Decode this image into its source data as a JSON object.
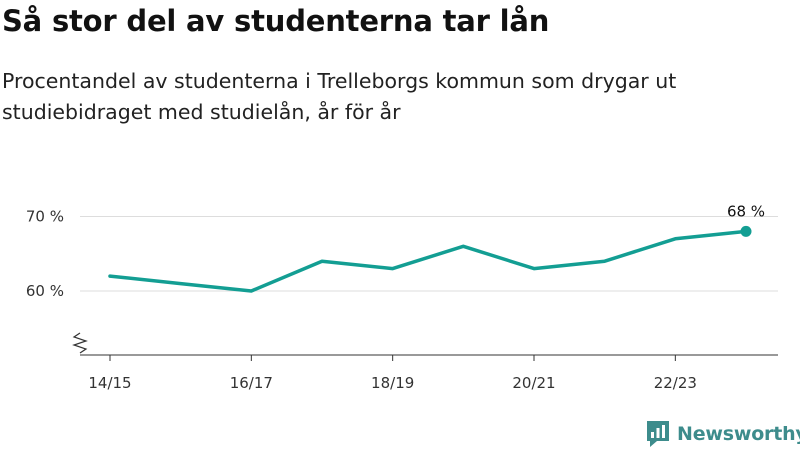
{
  "title": "Så stor del av studenterna tar lån",
  "subtitle": "Procentandel av studenterna i Trelleborgs kommun som drygar ut studiebidraget med studielån, år för år",
  "brand": {
    "name": "Newsworthy",
    "logo_icon": "bar-chart-speech-bubble-icon"
  },
  "colors": {
    "line": "#139e93",
    "grid": "#dddddd",
    "axis": "#333333",
    "brand": "#3d8c8c"
  },
  "chart_data": {
    "type": "line",
    "title": "Så stor del av studenterna tar lån",
    "subtitle": "Procentandel av studenterna i Trelleborgs kommun som drygar ut studiebidraget med studielån, år för år",
    "x": [
      "14/15",
      "15/16",
      "16/17",
      "17/18",
      "18/19",
      "19/20",
      "20/21",
      "21/22",
      "22/23",
      "23/24"
    ],
    "tick_labels": [
      "14/15",
      "16/17",
      "18/19",
      "20/21",
      "22/23"
    ],
    "y_ticks": [
      60,
      70
    ],
    "y_tick_labels": [
      "60 %",
      "70 %"
    ],
    "series": [
      {
        "values": [
          62,
          61,
          60,
          64,
          63,
          66,
          63,
          64,
          67,
          68
        ]
      }
    ],
    "ylim": [
      52,
      70
    ],
    "y_axis_break": true,
    "grid": true,
    "last_point_label": "68 %"
  }
}
